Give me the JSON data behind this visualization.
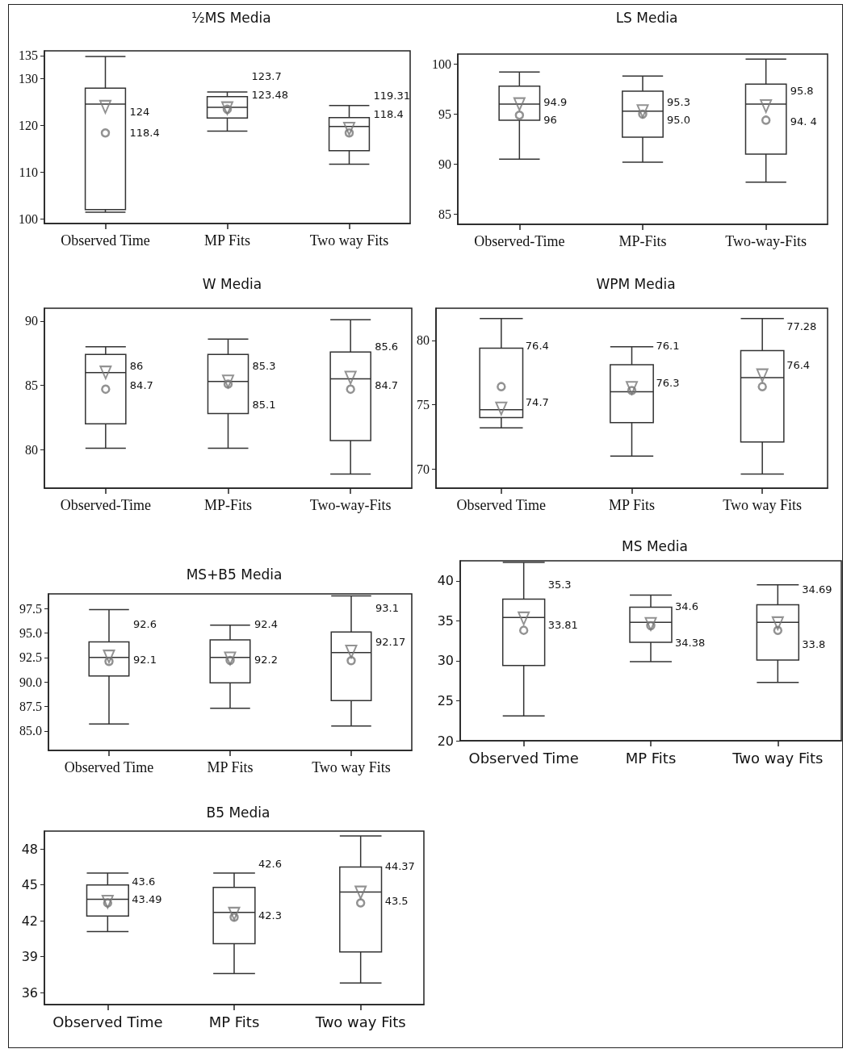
{
  "chart_data": [
    {
      "type": "box",
      "title": "½MS Media",
      "categories": [
        "Observed Time",
        "MP Fits",
        "Two way Fits"
      ],
      "ylim": [
        99,
        136
      ],
      "yticks": [
        100,
        110,
        120,
        130,
        135
      ],
      "grid": false,
      "color": "#333333",
      "boxes": [
        {
          "low": 101.4,
          "q1": 102.0,
          "median": 124.6,
          "q3": 128.0,
          "high": 134.8,
          "mean": 124
        },
        {
          "low": 118.8,
          "q1": 121.6,
          "median": 123.9,
          "q3": 126.2,
          "high": 127.2,
          "mean": 123.7
        },
        {
          "low": 111.7,
          "q1": 114.6,
          "median": 119.8,
          "q3": 121.7,
          "high": 124.3,
          "mean": 119.31
        }
      ],
      "series": [
        {
          "type": "scatter",
          "marker": "circle",
          "color": "#777777",
          "x": [
            "Observed Time",
            "MP Fits",
            "Two way Fits"
          ],
          "values": [
            118.4,
            123.48,
            118.4
          ]
        }
      ],
      "annotations": [
        "124",
        "118.4",
        "123.7",
        "123.48",
        "119.31",
        "118.4"
      ]
    },
    {
      "type": "box",
      "title": "LS Media",
      "categories": [
        "Observed-Time",
        "MP-Fits",
        "Two-way-Fits"
      ],
      "ylim": [
        84,
        101
      ],
      "yticks": [
        85,
        90,
        95,
        100
      ],
      "grid": false,
      "color": "#333333",
      "boxes": [
        {
          "low": 90.5,
          "q1": 94.4,
          "median": 96.0,
          "q3": 97.8,
          "high": 99.2,
          "mean": 96
        },
        {
          "low": 90.2,
          "q1": 92.7,
          "median": 95.3,
          "q3": 97.3,
          "high": 98.8,
          "mean": 95.3
        },
        {
          "low": 88.2,
          "q1": 91.0,
          "median": 96.0,
          "q3": 98.0,
          "high": 100.5,
          "mean": 95.8
        }
      ],
      "series": [
        {
          "type": "scatter",
          "marker": "circle",
          "color": "#777777",
          "x": [
            "Observed-Time",
            "MP-Fits",
            "Two-way-Fits"
          ],
          "values": [
            94.9,
            95.0,
            94.4
          ]
        }
      ],
      "annotations": [
        "94.9",
        "96",
        "95.3",
        "95.0",
        "95.8",
        "94. 4"
      ]
    },
    {
      "type": "box",
      "title": "W Media",
      "categories": [
        "Observed-Time",
        "MP-Fits",
        "Two-way-Fits"
      ],
      "ylim": [
        77,
        91
      ],
      "yticks": [
        80,
        85,
        90
      ],
      "grid": false,
      "color": "#333333",
      "boxes": [
        {
          "low": 80.1,
          "q1": 82.0,
          "median": 86.0,
          "q3": 87.4,
          "high": 88.0,
          "mean": 86
        },
        {
          "low": 80.1,
          "q1": 82.8,
          "median": 85.3,
          "q3": 87.4,
          "high": 88.6,
          "mean": 85.3
        },
        {
          "low": 78.1,
          "q1": 80.7,
          "median": 85.5,
          "q3": 87.6,
          "high": 90.1,
          "mean": 85.6
        }
      ],
      "series": [
        {
          "type": "scatter",
          "marker": "circle",
          "color": "#777777",
          "x": [
            "Observed-Time",
            "MP-Fits",
            "Two-way-Fits"
          ],
          "values": [
            84.7,
            85.1,
            84.7
          ]
        }
      ],
      "annotations": [
        "86",
        "84.7",
        "85.3",
        "85.1",
        "85.6",
        "84.7"
      ]
    },
    {
      "type": "box",
      "title": "WPM Media",
      "categories": [
        "Observed Time",
        "MP Fits",
        "Two way Fits"
      ],
      "ylim": [
        68.5,
        82.5
      ],
      "yticks": [
        70,
        75,
        80
      ],
      "grid": false,
      "color": "#333333",
      "boxes": [
        {
          "low": 73.2,
          "q1": 74.0,
          "median": 74.6,
          "q3": 79.4,
          "high": 81.7,
          "mean": 74.7
        },
        {
          "low": 71.0,
          "q1": 73.6,
          "median": 76.0,
          "q3": 78.1,
          "high": 79.5,
          "mean": 76.3
        },
        {
          "low": 69.6,
          "q1": 72.1,
          "median": 77.1,
          "q3": 79.2,
          "high": 81.7,
          "mean": 77.28
        }
      ],
      "series": [
        {
          "type": "scatter",
          "marker": "circle",
          "color": "#777777",
          "x": [
            "Observed Time",
            "MP Fits",
            "Two way Fits"
          ],
          "values": [
            76.4,
            76.1,
            76.4
          ]
        }
      ],
      "annotations": [
        "76.4",
        "74.7",
        "76.1",
        "76.3",
        "77.28",
        "76.4"
      ]
    },
    {
      "type": "box",
      "title": "MS+B5 Media",
      "categories": [
        "Observed Time",
        "MP Fits",
        "Two way Fits"
      ],
      "ylim": [
        83,
        99
      ],
      "yticks": [
        {
          "value": 85,
          "label": "85.0"
        },
        {
          "value": 87.5,
          "label": "87.5"
        },
        {
          "value": 90,
          "label": "90.0"
        },
        {
          "value": 92.5,
          "label": "92.5"
        },
        {
          "value": 95,
          "label": "95.0"
        },
        {
          "value": 97.5,
          "label": "97.5"
        }
      ],
      "grid": false,
      "color": "#333333",
      "boxes": [
        {
          "low": 85.7,
          "q1": 90.6,
          "median": 92.5,
          "q3": 94.1,
          "high": 97.4,
          "mean": 92.6
        },
        {
          "low": 87.3,
          "q1": 89.9,
          "median": 92.5,
          "q3": 94.3,
          "high": 95.8,
          "mean": 92.4
        },
        {
          "low": 85.5,
          "q1": 88.1,
          "median": 93.0,
          "q3": 95.1,
          "high": 98.8,
          "mean": 93.1
        }
      ],
      "series": [
        {
          "type": "scatter",
          "marker": "circle",
          "color": "#777777",
          "x": [
            "Observed Time",
            "MP Fits",
            "Two way Fits"
          ],
          "values": [
            92.1,
            92.2,
            92.17
          ]
        }
      ],
      "annotations": [
        "92.6",
        "92.1",
        "92.4",
        "92.2",
        "93.1",
        "92.17"
      ]
    },
    {
      "type": "box",
      "title": "MS Media",
      "categories": [
        "Observed Time",
        "MP Fits",
        "Two way Fits"
      ],
      "ylim": [
        20,
        42.5
      ],
      "yticks": [
        20,
        25,
        30,
        35,
        40
      ],
      "grid": false,
      "color": "#333333",
      "boxes": [
        {
          "low": 23.1,
          "q1": 29.4,
          "median": 35.4,
          "q3": 37.7,
          "high": 42.3,
          "mean": 35.3
        },
        {
          "low": 29.9,
          "q1": 32.3,
          "median": 34.8,
          "q3": 36.7,
          "high": 38.2,
          "mean": 34.6
        },
        {
          "low": 27.3,
          "q1": 30.1,
          "median": 34.8,
          "q3": 37.0,
          "high": 39.5,
          "mean": 34.69
        }
      ],
      "series": [
        {
          "type": "scatter",
          "marker": "circle",
          "color": "#777777",
          "x": [
            "Observed Time",
            "MP Fits",
            "Two way Fits"
          ],
          "values": [
            33.81,
            34.38,
            33.8
          ]
        }
      ],
      "annotations": [
        "35.3",
        "33.81",
        "34.6",
        "34.38",
        "34.69",
        "33.8"
      ]
    },
    {
      "type": "box",
      "title": "B5 Media",
      "categories": [
        "Observed Time",
        "MP Fits",
        "Two way Fits"
      ],
      "ylim": [
        35,
        49.5
      ],
      "yticks": [
        36,
        39,
        42,
        45,
        48
      ],
      "grid": false,
      "color": "#333333",
      "boxes": [
        {
          "low": 41.1,
          "q1": 42.4,
          "median": 43.8,
          "q3": 45.0,
          "high": 46.0,
          "mean": 43.6
        },
        {
          "low": 37.6,
          "q1": 40.1,
          "median": 42.7,
          "q3": 44.8,
          "high": 46.0,
          "mean": 42.6
        },
        {
          "low": 36.8,
          "q1": 39.4,
          "median": 44.4,
          "q3": 46.5,
          "high": 49.1,
          "mean": 44.37
        }
      ],
      "series": [
        {
          "type": "scatter",
          "marker": "circle",
          "color": "#777777",
          "x": [
            "Observed Time",
            "MP Fits",
            "Two way Fits"
          ],
          "values": [
            43.49,
            42.3,
            43.5
          ]
        }
      ],
      "annotations": [
        "43.6",
        "43.49",
        "42.6",
        "42.3",
        "44.37",
        "43.5"
      ]
    }
  ]
}
